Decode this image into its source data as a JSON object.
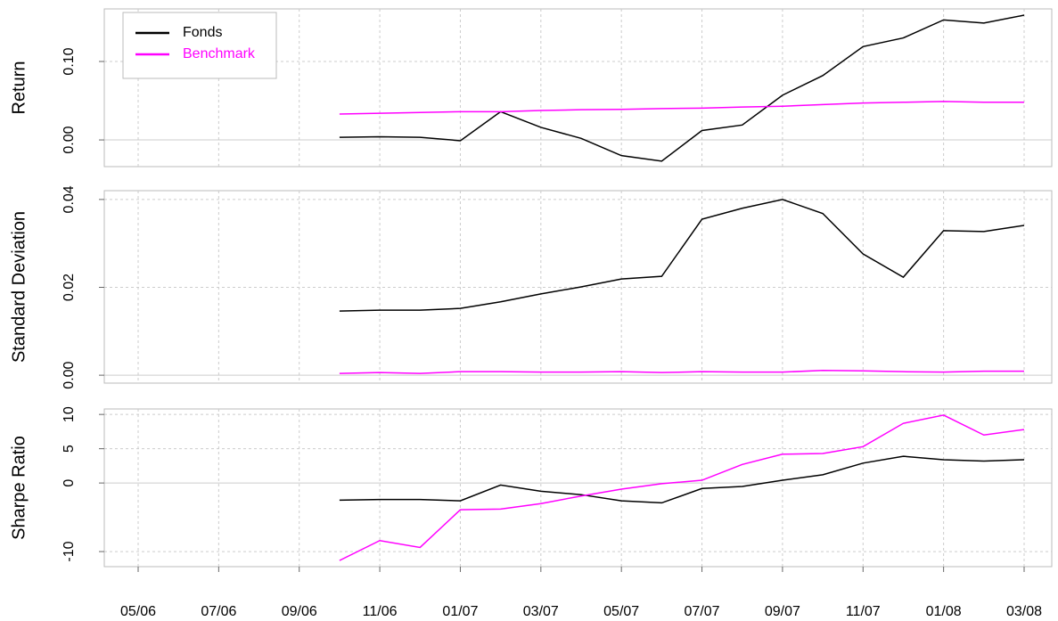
{
  "chart_data": [
    {
      "type": "line",
      "ylabel": "Return",
      "ylim": [
        -0.034,
        0.167
      ],
      "yticks": [
        {
          "value": 0,
          "label": "0.00"
        },
        {
          "value": 0.1,
          "label": "0.10"
        }
      ],
      "grid": true,
      "legend": "top-left",
      "series": [
        {
          "name": "Fonds",
          "color": "#000000",
          "values": [
            null,
            null,
            null,
            null,
            null,
            0.0034,
            0.004,
            0.0034,
            -0.001,
            0.036,
            0.016,
            0.002,
            -0.02,
            -0.027,
            0.012,
            0.019,
            0.057,
            0.082,
            0.119,
            0.13,
            0.153,
            0.149,
            0.159
          ]
        },
        {
          "name": "Benchmark",
          "color": "#ff00ff",
          "values": [
            null,
            null,
            null,
            null,
            null,
            0.033,
            0.034,
            0.035,
            0.036,
            0.036,
            0.0375,
            0.0385,
            0.039,
            0.04,
            0.0405,
            0.042,
            0.043,
            0.045,
            0.047,
            0.048,
            0.049,
            0.048,
            0.048
          ]
        }
      ]
    },
    {
      "type": "line",
      "ylabel": "Standard Deviation",
      "ylim": [
        -0.0018,
        0.042
      ],
      "yticks": [
        {
          "value": 0,
          "label": "0.00"
        },
        {
          "value": 0.02,
          "label": "0.02"
        },
        {
          "value": 0.04,
          "label": "0.04"
        }
      ],
      "grid": true,
      "series": [
        {
          "color": "#000000",
          "values": [
            null,
            null,
            null,
            null,
            null,
            0.0146,
            0.0148,
            0.0148,
            0.0152,
            0.0167,
            0.0185,
            0.0201,
            0.0219,
            0.0225,
            0.0355,
            0.038,
            0.04,
            0.0368,
            0.0276,
            0.0223,
            0.0329,
            0.0327,
            0.0341
          ]
        },
        {
          "color": "#ff00ff",
          "values": [
            null,
            null,
            null,
            null,
            null,
            0.0004,
            0.0006,
            0.0004,
            0.0008,
            0.0008,
            0.0007,
            0.0007,
            0.0008,
            0.0006,
            0.0008,
            0.0007,
            0.0007,
            0.0011,
            0.001,
            0.0008,
            0.0007,
            0.0009,
            0.0009
          ]
        }
      ]
    },
    {
      "type": "line",
      "ylabel": "Sharpe Ratio",
      "ylim": [
        -12.2,
        10.8
      ],
      "yticks": [
        -10,
        0,
        5,
        10
      ],
      "grid": true,
      "categories": [
        "05/06",
        null,
        "07/06",
        null,
        "09/06",
        null,
        "11/06",
        null,
        "01/07",
        null,
        "03/07",
        null,
        "05/07",
        null,
        "07/07",
        null,
        "09/07",
        null,
        "11/07",
        null,
        "01/08",
        null,
        "03/08"
      ],
      "series": [
        {
          "color": "#000000",
          "values": [
            null,
            null,
            null,
            null,
            null,
            -2.5,
            -2.4,
            -2.4,
            -2.6,
            -0.3,
            -1.2,
            -1.7,
            -2.6,
            -2.9,
            -0.8,
            -0.5,
            0.4,
            1.2,
            2.9,
            3.9,
            3.4,
            3.2,
            3.4
          ]
        },
        {
          "color": "#ff00ff",
          "values": [
            null,
            null,
            null,
            null,
            null,
            -11.3,
            -8.4,
            -9.4,
            -3.9,
            -3.8,
            -3.0,
            -1.9,
            -0.9,
            -0.1,
            0.4,
            2.7,
            4.2,
            4.3,
            5.3,
            8.7,
            9.9,
            7.0,
            7.8
          ]
        }
      ]
    }
  ]
}
